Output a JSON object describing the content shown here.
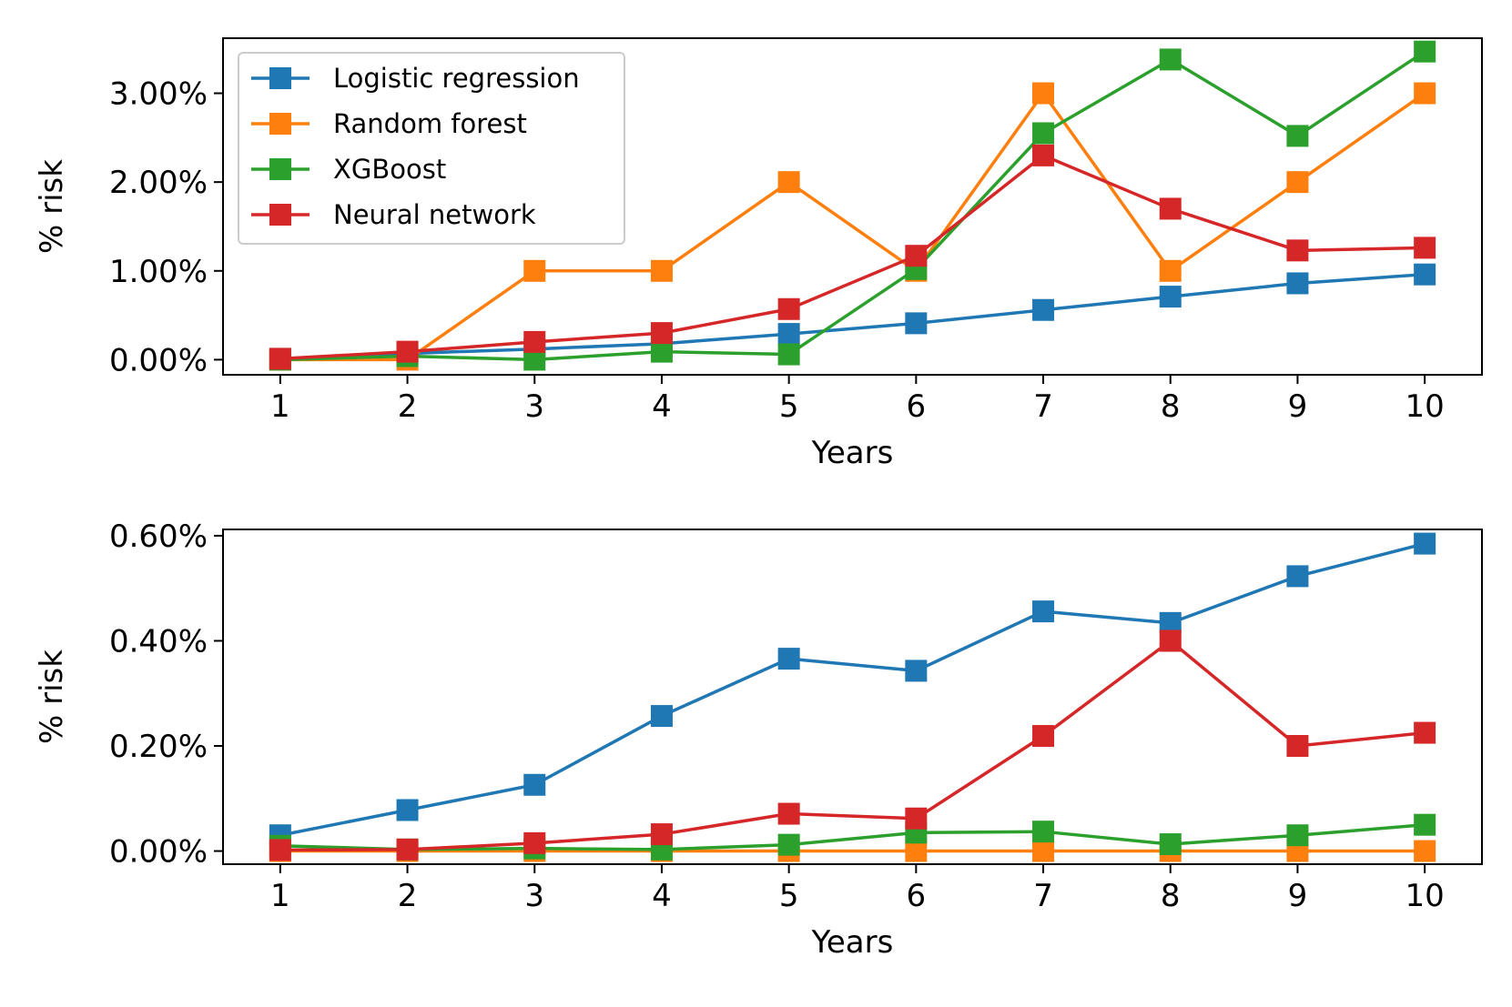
{
  "chart_data": [
    {
      "type": "line",
      "title": "",
      "xlabel": "Years",
      "ylabel": "% risk",
      "x": [
        1,
        2,
        3,
        4,
        5,
        6,
        7,
        8,
        9,
        10
      ],
      "xticks": [
        "1",
        "2",
        "3",
        "4",
        "5",
        "6",
        "7",
        "8",
        "9",
        "10"
      ],
      "yticks": [
        0,
        1,
        2,
        3
      ],
      "ytick_labels": [
        "0.00%",
        "1.00%",
        "2.00%",
        "3.00%"
      ],
      "ylim": [
        -0.17,
        3.62
      ],
      "xlim": [
        0.55,
        10.45
      ],
      "legend_position": "upper-left",
      "marker": "square",
      "series": [
        {
          "name": "Logistic regression",
          "color": "#1f77b4",
          "values": [
            0.01,
            0.07,
            0.12,
            0.18,
            0.29,
            0.41,
            0.56,
            0.71,
            0.86,
            0.96
          ]
        },
        {
          "name": "Random forest",
          "color": "#ff7f0e",
          "values": [
            0.0,
            0.0,
            1.0,
            1.0,
            2.0,
            1.0,
            3.0,
            1.0,
            2.0,
            3.0
          ]
        },
        {
          "name": "XGBoost",
          "color": "#2ca02c",
          "values": [
            0.0,
            0.04,
            0.0,
            0.09,
            0.06,
            1.02,
            2.55,
            3.38,
            2.52,
            3.47
          ]
        },
        {
          "name": "Neural network",
          "color": "#d62728",
          "values": [
            0.01,
            0.09,
            0.2,
            0.3,
            0.57,
            1.17,
            2.3,
            1.7,
            1.23,
            1.26
          ]
        }
      ]
    },
    {
      "type": "line",
      "title": "",
      "xlabel": "Years",
      "ylabel": "% risk",
      "x": [
        1,
        2,
        3,
        4,
        5,
        6,
        7,
        8,
        9,
        10
      ],
      "xticks": [
        "1",
        "2",
        "3",
        "4",
        "5",
        "6",
        "7",
        "8",
        "9",
        "10"
      ],
      "yticks": [
        0,
        0.2,
        0.4,
        0.6
      ],
      "ytick_labels": [
        "0.00%",
        "0.20%",
        "0.40%",
        "0.60%"
      ],
      "ylim": [
        -0.025,
        0.612
      ],
      "xlim": [
        0.55,
        10.45
      ],
      "marker": "square",
      "series": [
        {
          "name": "Logistic regression",
          "color": "#1f77b4",
          "values": [
            0.03,
            0.078,
            0.126,
            0.257,
            0.366,
            0.343,
            0.456,
            0.434,
            0.523,
            0.585
          ]
        },
        {
          "name": "Random forest",
          "color": "#ff7f0e",
          "values": [
            0.0,
            0.0,
            0.0,
            0.0,
            0.0,
            0.0,
            0.0,
            0.0,
            0.0,
            0.0
          ]
        },
        {
          "name": "XGBoost",
          "color": "#2ca02c",
          "values": [
            0.01,
            0.003,
            0.005,
            0.003,
            0.012,
            0.035,
            0.037,
            0.013,
            0.03,
            0.05
          ]
        },
        {
          "name": "Neural network",
          "color": "#d62728",
          "values": [
            0.002,
            0.003,
            0.015,
            0.032,
            0.071,
            0.062,
            0.219,
            0.4,
            0.2,
            0.225
          ]
        }
      ]
    }
  ]
}
